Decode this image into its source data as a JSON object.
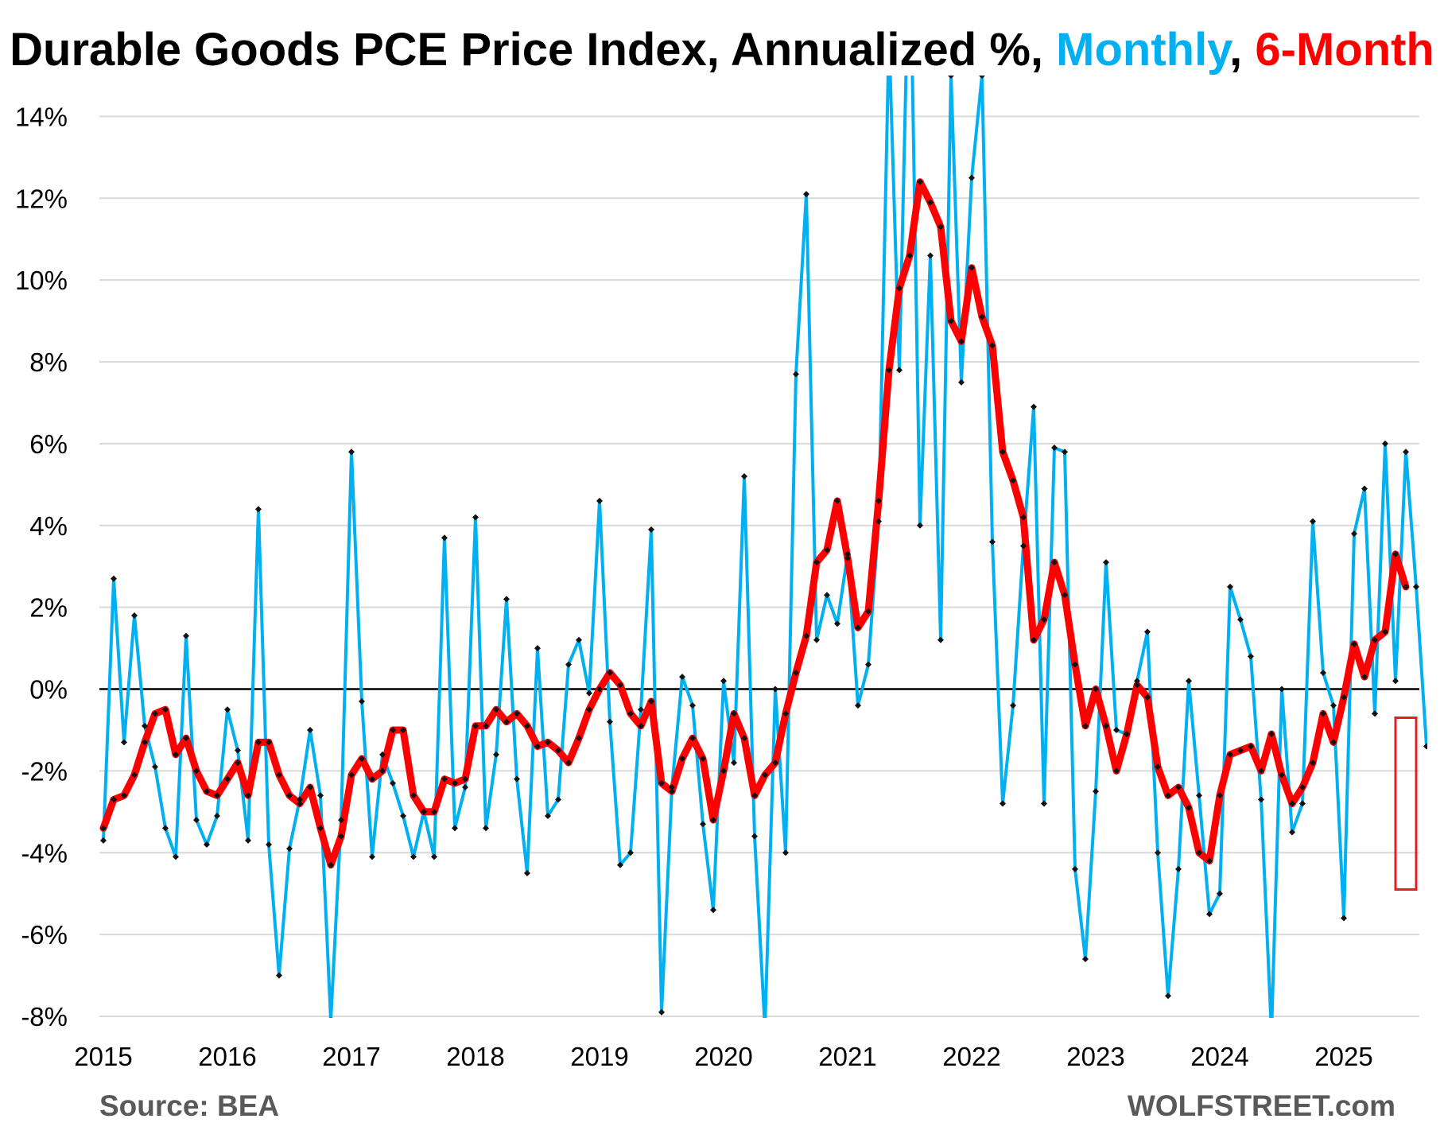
{
  "chart_data": {
    "type": "line",
    "title_parts": [
      {
        "text": "Durable Goods PCE Price Index, Annualized %, ",
        "color": "#000000"
      },
      {
        "text": "Monthly",
        "color": "#00b0f0"
      },
      {
        "text": ", ",
        "color": "#000000"
      },
      {
        "text": "6-Month",
        "color": "#ff0000"
      }
    ],
    "source": "Source: BEA",
    "watermark": "WOLFSTREET.com",
    "xlabel": "",
    "ylabel": "",
    "ylim": [
      -8,
      15
    ],
    "y_ticks": [
      -8,
      -6,
      -4,
      -2,
      0,
      2,
      4,
      6,
      8,
      10,
      12,
      14
    ],
    "y_tick_labels": [
      "-8%",
      "-6%",
      "-4%",
      "-2%",
      "0%",
      "2%",
      "4%",
      "6%",
      "8%",
      "10%",
      "12%",
      "14%"
    ],
    "x_start": "2015-01",
    "x_tick_labels": [
      "2015",
      "2016",
      "2017",
      "2018",
      "2019",
      "2020",
      "2021",
      "2022",
      "2023",
      "2024",
      "2025"
    ],
    "grid": true,
    "zero_line": true,
    "highlight_box": {
      "x_from": "2025-06",
      "x_to": "2025-08",
      "y_from": -4.9,
      "y_to": -0.7,
      "color": "#e02020"
    },
    "series": [
      {
        "color": "#00b0f0",
        "values": [
          -3.7,
          2.7,
          -1.3,
          1.8,
          -0.9,
          -1.9,
          -3.4,
          -4.1,
          1.3,
          -3.2,
          -3.8,
          -3.1,
          -0.5,
          -1.5,
          -3.7,
          4.4,
          -3.8,
          -7.0,
          -3.9,
          -2.7,
          -1.0,
          -2.6,
          -8.1,
          -3.2,
          5.8,
          -0.3,
          -4.1,
          -1.6,
          -2.3,
          -3.1,
          -4.1,
          -3.0,
          -4.1,
          3.7,
          -3.4,
          -2.4,
          4.2,
          -3.4,
          -1.6,
          2.2,
          -2.2,
          -4.5,
          1.0,
          -3.1,
          -2.7,
          0.6,
          1.2,
          -0.1,
          4.6,
          -0.8,
          -4.3,
          -4.0,
          -0.5,
          3.9,
          -7.9,
          -2.4,
          0.3,
          -0.4,
          -3.3,
          -5.4,
          0.2,
          -1.8,
          5.2,
          -3.6,
          -8.3,
          0.0,
          -4.0,
          7.7,
          12.1,
          1.2,
          2.3,
          1.6,
          3.3,
          -0.4,
          0.6,
          4.1,
          16.0,
          7.8,
          19.0,
          4.0,
          10.6,
          1.2,
          15.0,
          7.5,
          12.5,
          15.0,
          3.6,
          -2.8,
          -0.4,
          3.5,
          6.9,
          -2.8,
          5.9,
          5.8,
          -4.4,
          -6.6,
          -2.5,
          3.1,
          -1.0,
          -1.1,
          0.2,
          1.4,
          -4.0,
          -7.5,
          -4.4,
          0.2,
          -2.6,
          -5.5,
          -5.0,
          2.5,
          1.7,
          0.8,
          -2.7,
          -8.4,
          0.0,
          -3.5,
          -2.8,
          4.1,
          0.4,
          -0.4,
          -5.6,
          3.8,
          4.9,
          -0.6,
          6.0,
          0.2,
          5.8,
          2.5,
          -1.4
        ]
      },
      {
        "color": "#ff0000",
        "values": [
          -3.4,
          -2.7,
          -2.6,
          -2.1,
          -1.3,
          -0.6,
          -0.5,
          -1.6,
          -1.2,
          -2.0,
          -2.5,
          -2.6,
          -2.2,
          -1.8,
          -2.6,
          -1.3,
          -1.3,
          -2.1,
          -2.6,
          -2.8,
          -2.4,
          -3.4,
          -4.3,
          -3.6,
          -2.1,
          -1.7,
          -2.2,
          -2.0,
          -1.0,
          -1.0,
          -2.6,
          -3.0,
          -3.0,
          -2.2,
          -2.3,
          -2.2,
          -0.9,
          -0.9,
          -0.5,
          -0.8,
          -0.6,
          -0.9,
          -1.4,
          -1.3,
          -1.5,
          -1.8,
          -1.2,
          -0.5,
          0.0,
          0.4,
          0.1,
          -0.6,
          -0.9,
          -0.3,
          -2.3,
          -2.5,
          -1.7,
          -1.2,
          -1.7,
          -3.2,
          -2.0,
          -0.6,
          -1.2,
          -2.6,
          -2.1,
          -1.8,
          -0.6,
          0.4,
          1.3,
          3.1,
          3.4,
          4.6,
          3.2,
          1.5,
          1.9,
          4.6,
          7.8,
          9.8,
          10.6,
          12.4,
          11.9,
          11.3,
          9.0,
          8.5,
          10.3,
          9.1,
          8.4,
          5.8,
          5.1,
          4.2,
          1.2,
          1.7,
          3.1,
          2.3,
          0.6,
          -0.9,
          0.0,
          -0.9,
          -2.0,
          -1.1,
          0.1,
          -0.2,
          -1.9,
          -2.6,
          -2.4,
          -2.9,
          -4.0,
          -4.2,
          -2.6,
          -1.6,
          -1.5,
          -1.4,
          -2.0,
          -1.1,
          -2.1,
          -2.8,
          -2.4,
          -1.8,
          -0.6,
          -1.3,
          -0.2,
          1.1,
          0.3,
          1.2,
          1.4,
          3.3,
          2.5
        ]
      }
    ]
  }
}
